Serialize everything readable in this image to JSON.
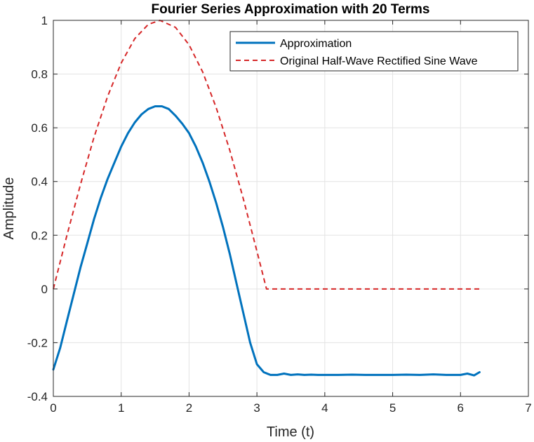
{
  "chart_data": {
    "type": "line",
    "title": "Fourier Series Approximation with 20 Terms",
    "xlabel": "Time (t)",
    "ylabel": "Amplitude",
    "xlim": [
      0,
      7
    ],
    "ylim": [
      -0.4,
      1
    ],
    "xticks": [
      0,
      1,
      2,
      3,
      4,
      5,
      6,
      7
    ],
    "yticks": [
      -0.4,
      -0.2,
      0,
      0.2,
      0.4,
      0.6,
      0.8,
      1
    ],
    "xtick_labels": [
      "0",
      "1",
      "2",
      "3",
      "4",
      "5",
      "6",
      "7"
    ],
    "ytick_labels": [
      "-0.4",
      "-0.2",
      "0",
      "0.2",
      "0.4",
      "0.6",
      "0.8",
      "1"
    ],
    "grid": true,
    "legend_position": "top-right",
    "series": [
      {
        "name": "Approximation",
        "color": "#0072BD",
        "style": "solid",
        "x": [
          0,
          0.1,
          0.2,
          0.3,
          0.4,
          0.5,
          0.6,
          0.7,
          0.8,
          0.9,
          1.0,
          1.1,
          1.2,
          1.3,
          1.4,
          1.5,
          1.6,
          1.7,
          1.8,
          1.9,
          2.0,
          2.1,
          2.2,
          2.3,
          2.4,
          2.5,
          2.6,
          2.7,
          2.8,
          2.9,
          3.0,
          3.1,
          3.2,
          3.3,
          3.4,
          3.5,
          3.6,
          3.7,
          3.8,
          3.9,
          4.0,
          4.2,
          4.4,
          4.6,
          4.8,
          5.0,
          5.2,
          5.4,
          5.6,
          5.8,
          6.0,
          6.1,
          6.2,
          6.28
        ],
        "y": [
          -0.3,
          -0.22,
          -0.12,
          -0.02,
          0.08,
          0.17,
          0.26,
          0.34,
          0.41,
          0.47,
          0.53,
          0.58,
          0.62,
          0.65,
          0.67,
          0.68,
          0.68,
          0.67,
          0.645,
          0.615,
          0.58,
          0.53,
          0.47,
          0.4,
          0.32,
          0.23,
          0.13,
          0.02,
          -0.09,
          -0.2,
          -0.28,
          -0.31,
          -0.32,
          -0.32,
          -0.315,
          -0.32,
          -0.318,
          -0.32,
          -0.319,
          -0.32,
          -0.32,
          -0.32,
          -0.319,
          -0.32,
          -0.32,
          -0.32,
          -0.319,
          -0.32,
          -0.318,
          -0.32,
          -0.32,
          -0.315,
          -0.322,
          -0.31
        ]
      },
      {
        "name": "Original Half-Wave Rectified Sine Wave",
        "color": "#D62728",
        "style": "dashed",
        "x": [
          0,
          0.2,
          0.4,
          0.6,
          0.8,
          1.0,
          1.2,
          1.4,
          1.5708,
          1.8,
          2.0,
          2.2,
          2.4,
          2.6,
          2.8,
          3.0,
          3.1416,
          3.5,
          4.0,
          5.0,
          6.28
        ],
        "y": [
          0,
          0.199,
          0.389,
          0.565,
          0.717,
          0.841,
          0.932,
          0.985,
          1.0,
          0.974,
          0.909,
          0.808,
          0.675,
          0.516,
          0.335,
          0.141,
          0,
          0,
          0,
          0,
          0
        ]
      }
    ]
  }
}
